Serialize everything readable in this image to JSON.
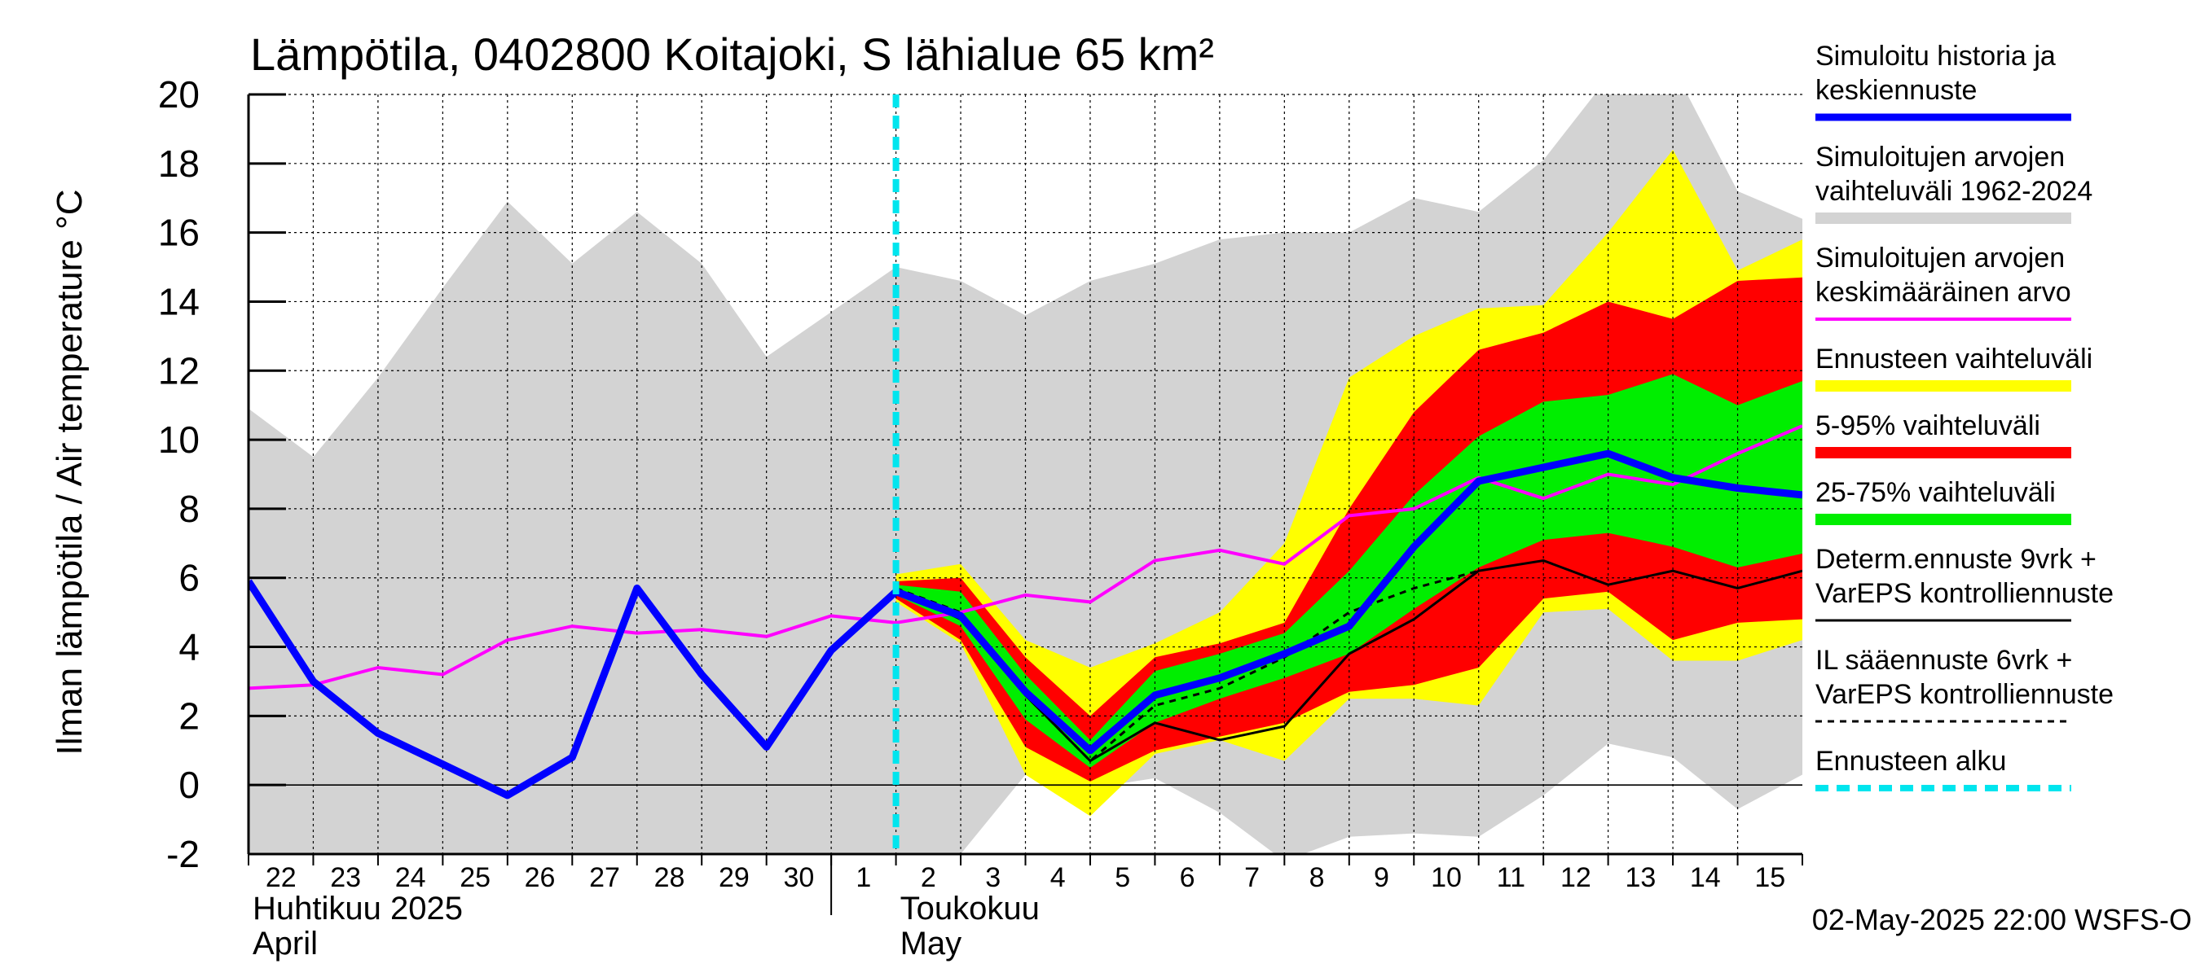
{
  "chart_data": {
    "type": "area",
    "title": "Lämpötila, 0402800 Koitajoki, S lähialue 65 km²",
    "ylabel": "Ilman lämpötila / Air temperature   °C",
    "ylim": [
      -2,
      20
    ],
    "yticks": [
      -2,
      0,
      2,
      4,
      6,
      8,
      10,
      12,
      14,
      16,
      18,
      20
    ],
    "xlim": [
      0,
      24
    ],
    "day_labels": [
      "22",
      "23",
      "24",
      "25",
      "26",
      "27",
      "28",
      "29",
      "30",
      "1",
      "2",
      "3",
      "4",
      "5",
      "6",
      "7",
      "8",
      "9",
      "10",
      "11",
      "12",
      "13",
      "14",
      "15"
    ],
    "month_labels": [
      {
        "line1": "Huhtikuu  2025",
        "line2": "April",
        "day_index": 0
      },
      {
        "line1": "Toukokuu",
        "line2": "May",
        "day_index": 10
      }
    ],
    "month_divider_day": 9,
    "forecast_start": 10.0,
    "timestamp": "02-May-2025 22:00 WSFS-O",
    "series": [
      {
        "key": "hist_range",
        "name": "Simuloitujen arvojen vaihteluväli 1962-2024",
        "color": "#d3d3d3",
        "x": [
          0,
          1,
          2,
          3,
          4,
          5,
          6,
          7,
          8,
          9,
          10,
          11,
          12,
          13,
          14,
          15,
          16,
          17,
          18,
          19,
          20,
          21,
          22,
          23,
          24
        ],
        "upper": [
          10.9,
          9.5,
          11.8,
          14.4,
          16.9,
          15.1,
          16.6,
          15.1,
          12.4,
          13.7,
          15.0,
          14.6,
          13.6,
          14.6,
          15.1,
          15.8,
          16.0,
          16.0,
          17.0,
          16.6,
          18.1,
          20.5,
          20.8,
          17.2,
          16.4
        ],
        "lower": [
          -2,
          -2,
          -2,
          -2,
          -2,
          -2,
          -2,
          -2,
          -2,
          -2,
          -2,
          -2,
          0.3,
          -0.1,
          0.2,
          -0.8,
          -2.2,
          -1.5,
          -1.4,
          -1.5,
          -0.3,
          1.2,
          0.8,
          -0.7,
          0.3
        ]
      },
      {
        "key": "ens_range",
        "name": "Ennusteen vaihteluväli",
        "color": "#ffff00",
        "x": [
          10,
          11,
          12,
          13,
          14,
          15,
          16,
          17,
          18,
          19,
          20,
          21,
          22,
          23,
          24
        ],
        "upper": [
          6.1,
          6.4,
          4.2,
          3.4,
          4.1,
          5.0,
          7.0,
          11.8,
          13.0,
          13.8,
          13.9,
          16.0,
          18.4,
          14.9,
          15.8
        ],
        "lower": [
          5.3,
          4.1,
          0.3,
          -0.9,
          0.9,
          1.3,
          0.7,
          2.5,
          2.5,
          2.3,
          5.0,
          5.1,
          3.6,
          3.6,
          4.2
        ]
      },
      {
        "key": "p5_95",
        "name": "5-95% vaihteluväli",
        "color": "#ff0000",
        "x": [
          10,
          11,
          12,
          13,
          14,
          15,
          16,
          17,
          18,
          19,
          20,
          21,
          22,
          23,
          24
        ],
        "upper": [
          5.9,
          6.0,
          3.7,
          2.0,
          3.7,
          4.1,
          4.7,
          8.0,
          10.8,
          12.6,
          13.1,
          14.0,
          13.5,
          14.6,
          14.7
        ],
        "lower": [
          5.4,
          4.2,
          1.1,
          0.1,
          1.0,
          1.4,
          1.8,
          2.7,
          2.9,
          3.4,
          5.4,
          5.6,
          4.2,
          4.7,
          4.8
        ]
      },
      {
        "key": "p25_75",
        "name": "25-75% vaihteluväli",
        "color": "#00ee00",
        "x": [
          10,
          11,
          12,
          13,
          14,
          15,
          16,
          17,
          18,
          19,
          20,
          21,
          22,
          23,
          24
        ],
        "upper": [
          5.8,
          5.6,
          3.2,
          1.3,
          3.3,
          3.8,
          4.4,
          6.2,
          8.4,
          10.1,
          11.1,
          11.3,
          11.9,
          11.0,
          11.7
        ],
        "lower": [
          5.5,
          4.6,
          1.9,
          0.5,
          1.8,
          2.5,
          3.1,
          3.8,
          5.1,
          6.3,
          7.1,
          7.3,
          6.9,
          6.3,
          6.7
        ]
      },
      {
        "key": "mean",
        "name": "Simuloitujen arvojen keskimääräinen arvo",
        "color": "#ff00ff",
        "x": [
          0,
          1,
          2,
          3,
          4,
          5,
          6,
          7,
          8,
          9,
          10,
          11,
          12,
          13,
          14,
          15,
          16,
          17,
          18,
          19,
          20,
          21,
          22,
          23,
          24
        ],
        "y": [
          2.8,
          2.9,
          3.4,
          3.2,
          4.2,
          4.6,
          4.4,
          4.5,
          4.3,
          4.9,
          4.7,
          5.0,
          5.5,
          5.3,
          6.5,
          6.8,
          6.4,
          7.8,
          8.0,
          8.9,
          8.3,
          9.0,
          8.7,
          9.6,
          10.4
        ]
      },
      {
        "key": "determ",
        "name": "Determ.ennuste 9vrk + VarEPS kontrolliennuste",
        "color": "#000000",
        "x": [
          8,
          9,
          10,
          11,
          12,
          13,
          14,
          15,
          16,
          17,
          18,
          19,
          20,
          21,
          22,
          23,
          24
        ],
        "y": [
          1.1,
          3.9,
          5.7,
          4.8,
          2.6,
          0.7,
          1.8,
          1.3,
          1.7,
          3.8,
          4.8,
          6.2,
          6.5,
          5.8,
          6.2,
          5.7,
          6.2
        ]
      },
      {
        "key": "il",
        "name": "IL sääennuste 6vrk + VarEPS kontrolliennuste",
        "color": "#000000",
        "x": [
          10,
          11,
          12,
          13,
          14,
          15,
          16,
          17,
          18,
          19
        ],
        "y": [
          5.7,
          5.0,
          2.6,
          0.7,
          2.3,
          2.8,
          3.7,
          5.0,
          5.7,
          6.2
        ]
      },
      {
        "key": "sim",
        "name": "Simuloitu historia ja keskiennuste",
        "color": "#0000ff",
        "x": [
          0,
          1,
          2,
          3,
          4,
          5,
          6,
          7,
          8,
          9,
          10,
          11,
          12,
          13,
          14,
          15,
          16,
          17,
          18,
          19,
          20,
          21,
          22,
          23,
          24
        ],
        "y": [
          5.9,
          3.0,
          1.5,
          0.6,
          -0.3,
          0.8,
          5.7,
          3.2,
          1.1,
          3.9,
          5.6,
          4.9,
          2.7,
          1.0,
          2.6,
          3.1,
          3.8,
          4.6,
          6.9,
          8.8,
          9.2,
          9.6,
          8.9,
          8.6,
          8.4
        ]
      },
      {
        "key": "start",
        "name": "Ennusteen alku",
        "color": "#00e5ee"
      }
    ],
    "legend": [
      {
        "key": "sim",
        "line1": "Simuloitu historia ja",
        "line2": "keskiennuste",
        "swatch": "thick"
      },
      {
        "key": "hist_range",
        "line1": "Simuloitujen arvojen",
        "line2": "vaihteluväli 1962-2024",
        "swatch": "band"
      },
      {
        "key": "mean",
        "line1": "Simuloitujen arvojen",
        "line2": "keskimääräinen arvo",
        "swatch": "thin"
      },
      {
        "key": "ens_range",
        "line1": "Ennusteen vaihteluväli",
        "line2": "",
        "swatch": "band"
      },
      {
        "key": "p5_95",
        "line1": "5-95% vaihteluväli",
        "line2": "",
        "swatch": "band"
      },
      {
        "key": "p25_75",
        "line1": "25-75% vaihteluväli",
        "line2": "",
        "swatch": "band"
      },
      {
        "key": "determ",
        "line1": "Determ.ennuste 9vrk +",
        "line2": "VarEPS kontrolliennuste",
        "swatch": "line"
      },
      {
        "key": "il",
        "line1": "IL sääennuste 6vrk  +",
        "line2": "  VarEPS kontrolliennuste",
        "swatch": "dashed"
      },
      {
        "key": "start",
        "line1": "Ennusteen alku",
        "line2": "",
        "swatch": "cyan"
      }
    ]
  }
}
